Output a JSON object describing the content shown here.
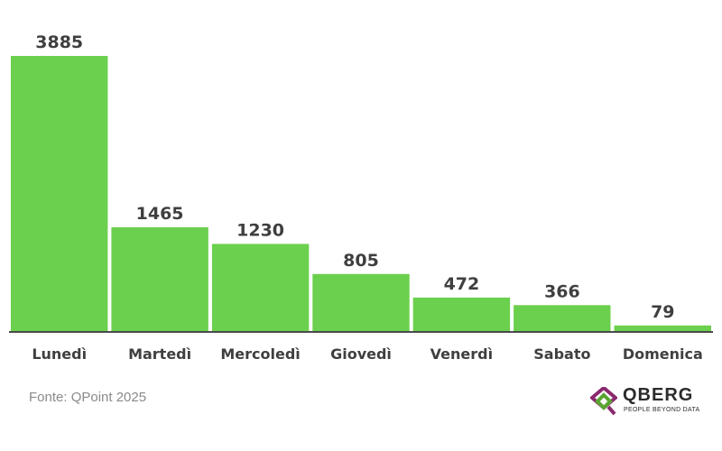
{
  "chart_data": {
    "type": "bar",
    "categories": [
      "Lunedì",
      "Martedì",
      "Mercoledì",
      "Giovedì",
      "Venerdì",
      "Sabato",
      "Domenica"
    ],
    "values": [
      3885,
      1465,
      1230,
      805,
      472,
      366,
      79
    ],
    "value_labels": [
      "3885",
      "1465",
      "1230",
      "805",
      "472",
      "366",
      "79"
    ],
    "ylim": [
      0,
      3885
    ],
    "grid": false,
    "legend": "none",
    "bar_color": "#6bd04d",
    "baseline_color": "#4a4a4a",
    "label_color": "#3f3f3f"
  },
  "footer": {
    "source": "Fonte: QPoint 2025"
  },
  "logo": {
    "name": "QBERG",
    "tagline": "PEOPLE BEYOND DATA",
    "colors": [
      "#8a2a6e",
      "#5aa532"
    ]
  }
}
